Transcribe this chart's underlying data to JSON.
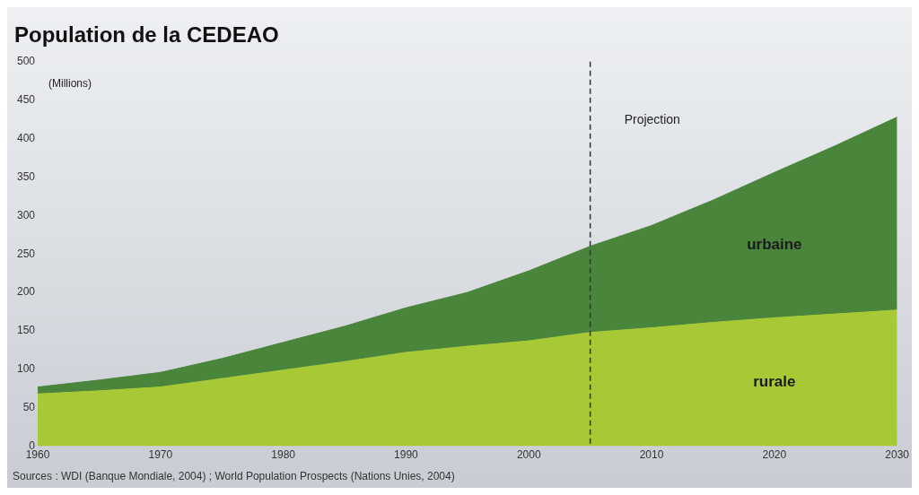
{
  "chart_data": {
    "type": "area",
    "title": "Population de la CEDEAO",
    "ylabel": "(Millions)",
    "stacked": true,
    "x": [
      1960,
      1965,
      1970,
      1975,
      1980,
      1985,
      1990,
      1995,
      2000,
      2005,
      2010,
      2015,
      2020,
      2025,
      2030
    ],
    "series": [
      {
        "name": "rurale",
        "color": "#a6c935",
        "values": [
          68,
          72,
          77,
          88,
          99,
          110,
          122,
          130,
          137,
          148,
          154,
          161,
          167,
          172,
          177
        ]
      },
      {
        "name": "urbaine",
        "color": "#4a853c",
        "values": [
          9,
          14,
          19,
          26,
          36,
          46,
          58,
          70,
          91,
          112,
          133,
          159,
          189,
          219,
          251
        ]
      }
    ],
    "xlim": [
      1960,
      2030
    ],
    "xticks": [
      1960,
      1970,
      1980,
      1990,
      2000,
      2010,
      2020,
      2030
    ],
    "ylim": [
      0,
      500
    ],
    "yticks": [
      0,
      50,
      100,
      150,
      200,
      250,
      300,
      350,
      400,
      450,
      500
    ],
    "grid": false,
    "legend": false,
    "ref_lines": [
      {
        "axis": "x",
        "value": 2005,
        "label": "Projection",
        "color": "#333333",
        "line_style": "dashed"
      }
    ],
    "annotations": [
      "Sources : WDI (Banque Mondiale, 2004) ; World Population Prospects (Nations Unies, 2004)"
    ]
  }
}
